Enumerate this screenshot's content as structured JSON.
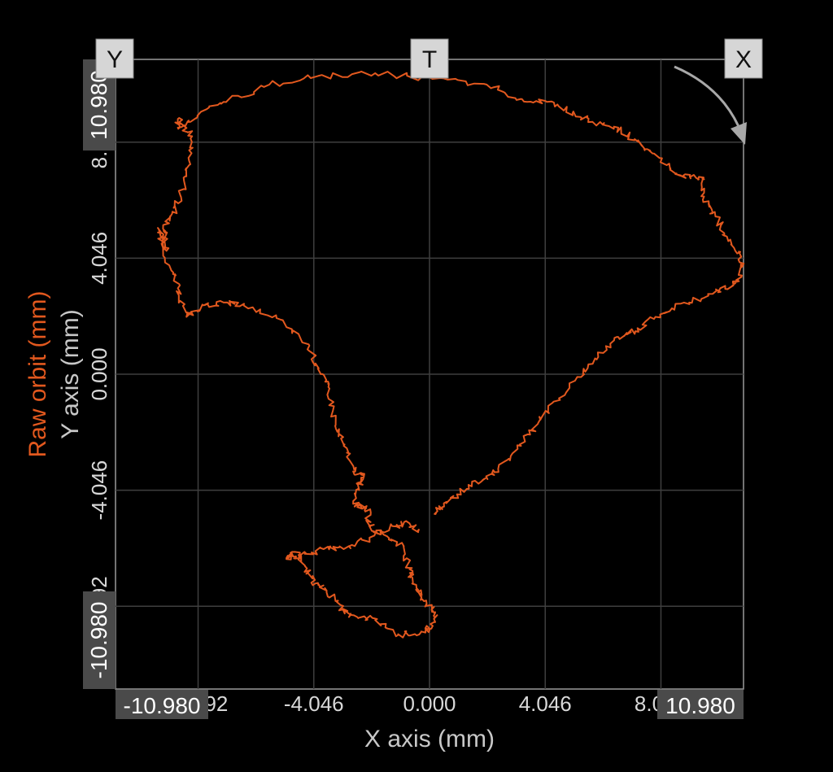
{
  "probes": {
    "y_label": "Y",
    "t_label": "T",
    "x_label": "X"
  },
  "chart_data": {
    "type": "line",
    "title": "",
    "xlabel": "X axis (mm)",
    "ylabel": "Y axis (mm)",
    "series_label": "Raw orbit (mm)",
    "xlim": [
      -10.98,
      10.98
    ],
    "ylim": [
      -10.98,
      10.98
    ],
    "x_ticks": [
      "-8.092",
      "-4.046",
      "0.000",
      "4.046",
      "8.092"
    ],
    "y_ticks": [
      "-8.092",
      "-4.046",
      "0.000",
      "4.046",
      "8.092"
    ],
    "x_tick_values": [
      -8.092,
      -4.046,
      0.0,
      4.046,
      8.092
    ],
    "y_tick_values": [
      -8.092,
      -4.046,
      0.0,
      4.046,
      8.092
    ],
    "x_min_label": "-10.980",
    "x_max_label": "10.980",
    "y_min_label": "-10.980",
    "y_max_label": "10.980",
    "grid": true,
    "series": [
      {
        "name": "Raw orbit (mm)",
        "color": "#e2581e",
        "x": [
          0.2,
          0.5,
          1.3,
          2.0,
          2.4,
          3.2,
          3.8,
          4.3,
          5.3,
          5.9,
          6.6,
          7.2,
          7.9,
          8.9,
          9.9,
          10.6,
          10.9,
          10.9,
          10.4,
          10.0,
          9.6,
          9.6,
          9.1,
          8.6,
          7.8,
          7.3,
          6.6,
          5.7,
          5.0,
          4.1,
          3.2,
          2.0,
          0.1,
          -1.9,
          -3.9,
          -5.6,
          -7.2,
          -8.1,
          -8.8,
          -8.8,
          -8.3,
          -8.4,
          -8.7,
          -9.0,
          -9.3,
          -9.2,
          -9.5,
          -9.1,
          -8.8,
          -8.5,
          -7.9,
          -7.2,
          -6.5,
          -5.2,
          -4.2,
          -3.8,
          -3.5,
          -3.3,
          -3.0,
          -2.6,
          -2.3,
          -2.5,
          -2.6,
          -2.2,
          -2.1,
          -1.6,
          -0.9,
          -0.7,
          -0.6,
          -0.4,
          -0.1,
          0.2,
          0.1,
          -0.3,
          -1.1,
          -2.0,
          -2.7,
          -3.0,
          -3.6,
          -4.0,
          -4.3,
          -4.7,
          -5.0,
          -4.5,
          -3.7,
          -3.0,
          -2.1,
          -1.3,
          -0.7,
          -0.4
        ],
        "y": [
          -4.9,
          -4.5,
          -4.0,
          -3.6,
          -3.3,
          -2.5,
          -1.7,
          -1.0,
          -0.1,
          0.6,
          1.3,
          1.5,
          2.0,
          2.5,
          2.8,
          3.1,
          3.4,
          4.1,
          4.8,
          5.5,
          6.2,
          6.8,
          6.9,
          7.0,
          7.7,
          8.1,
          8.6,
          8.8,
          9.1,
          9.5,
          9.6,
          10.1,
          10.3,
          10.5,
          10.4,
          10.1,
          9.5,
          9.0,
          8.6,
          8.9,
          8.3,
          7.3,
          6.2,
          5.6,
          5.0,
          4.3,
          5.1,
          3.8,
          3.0,
          2.0,
          2.4,
          2.5,
          2.4,
          1.9,
          1.0,
          0.0,
          -0.5,
          -1.8,
          -2.5,
          -3.4,
          -3.6,
          -4.0,
          -4.6,
          -4.6,
          -5.3,
          -5.6,
          -6.0,
          -6.8,
          -7.1,
          -7.6,
          -8.0,
          -8.3,
          -8.8,
          -9.0,
          -9.1,
          -8.5,
          -8.4,
          -8.2,
          -7.6,
          -7.3,
          -6.8,
          -6.2,
          -6.4,
          -6.3,
          -6.1,
          -6.1,
          -5.7,
          -5.3,
          -5.2,
          -5.5
        ]
      }
    ]
  }
}
